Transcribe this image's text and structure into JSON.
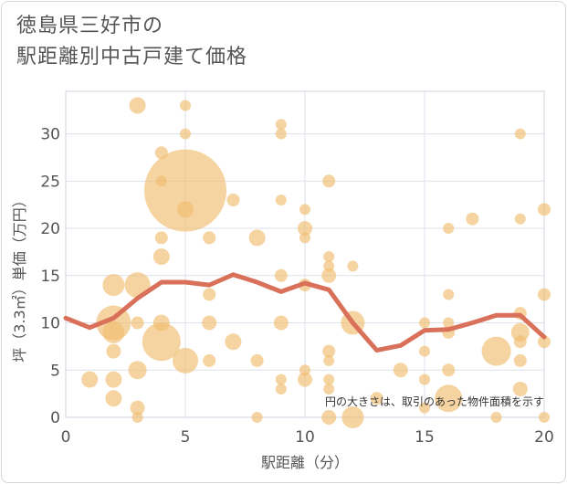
{
  "title_line1": "徳島県三好市の",
  "title_line2": "駅距離別中古戸建て価格",
  "chart_data": {
    "type": "scatter",
    "title": "徳島県三好市の駅距離別中古戸建て価格",
    "xlabel": "駅距離（分）",
    "ylabel": "坪（3.3㎡）単価（万円）",
    "xlim": [
      0,
      20
    ],
    "ylim": [
      0,
      34.5
    ],
    "xticks": [
      0,
      5,
      10,
      15,
      20
    ],
    "yticks": [
      0,
      5,
      10,
      15,
      20,
      25,
      30
    ],
    "grid": true,
    "note": "円の大きさは、取引のあった物件面積を示す",
    "series": [
      {
        "kind": "bubble",
        "color": "#f0bd6e",
        "points": [
          {
            "x": 1,
            "y": 4,
            "s": 9
          },
          {
            "x": 2,
            "y": 14,
            "s": 12
          },
          {
            "x": 2,
            "y": 10,
            "s": 19
          },
          {
            "x": 2,
            "y": 9,
            "s": 12
          },
          {
            "x": 2,
            "y": 7,
            "s": 8
          },
          {
            "x": 2,
            "y": 4,
            "s": 9
          },
          {
            "x": 2,
            "y": 2,
            "s": 9
          },
          {
            "x": 3,
            "y": 33,
            "s": 9
          },
          {
            "x": 3,
            "y": 14,
            "s": 14
          },
          {
            "x": 3,
            "y": 10,
            "s": 7
          },
          {
            "x": 3,
            "y": 5,
            "s": 10
          },
          {
            "x": 3,
            "y": 1,
            "s": 8
          },
          {
            "x": 3,
            "y": 0,
            "s": 6
          },
          {
            "x": 4,
            "y": 28,
            "s": 7
          },
          {
            "x": 4,
            "y": 25,
            "s": 6
          },
          {
            "x": 4,
            "y": 19,
            "s": 7
          },
          {
            "x": 4,
            "y": 17,
            "s": 9
          },
          {
            "x": 4,
            "y": 10,
            "s": 9
          },
          {
            "x": 4,
            "y": 8,
            "s": 21
          },
          {
            "x": 5,
            "y": 33,
            "s": 6
          },
          {
            "x": 5,
            "y": 30,
            "s": 6
          },
          {
            "x": 5,
            "y": 24,
            "s": 45
          },
          {
            "x": 5,
            "y": 22,
            "s": 9
          },
          {
            "x": 5,
            "y": 6,
            "s": 14
          },
          {
            "x": 6,
            "y": 19,
            "s": 7
          },
          {
            "x": 6,
            "y": 13,
            "s": 7
          },
          {
            "x": 6,
            "y": 10,
            "s": 8
          },
          {
            "x": 6,
            "y": 6,
            "s": 7
          },
          {
            "x": 7,
            "y": 23,
            "s": 7
          },
          {
            "x": 7,
            "y": 8,
            "s": 9
          },
          {
            "x": 8,
            "y": 19,
            "s": 9
          },
          {
            "x": 8,
            "y": 6,
            "s": 7
          },
          {
            "x": 8,
            "y": 0,
            "s": 6
          },
          {
            "x": 9,
            "y": 31,
            "s": 6
          },
          {
            "x": 9,
            "y": 30,
            "s": 6
          },
          {
            "x": 9,
            "y": 23,
            "s": 6
          },
          {
            "x": 9,
            "y": 15,
            "s": 7
          },
          {
            "x": 9,
            "y": 10,
            "s": 8
          },
          {
            "x": 9,
            "y": 4,
            "s": 6
          },
          {
            "x": 9,
            "y": 3,
            "s": 6
          },
          {
            "x": 10,
            "y": 22,
            "s": 6
          },
          {
            "x": 10,
            "y": 20,
            "s": 8
          },
          {
            "x": 10,
            "y": 19,
            "s": 6
          },
          {
            "x": 10,
            "y": 14,
            "s": 7
          },
          {
            "x": 10,
            "y": 5,
            "s": 6
          },
          {
            "x": 10,
            "y": 4,
            "s": 8
          },
          {
            "x": 11,
            "y": 25,
            "s": 7
          },
          {
            "x": 11,
            "y": 17,
            "s": 6
          },
          {
            "x": 11,
            "y": 16,
            "s": 6
          },
          {
            "x": 11,
            "y": 15,
            "s": 8
          },
          {
            "x": 11,
            "y": 7,
            "s": 7
          },
          {
            "x": 11,
            "y": 6,
            "s": 6
          },
          {
            "x": 11,
            "y": 4,
            "s": 6
          },
          {
            "x": 11,
            "y": 3,
            "s": 6
          },
          {
            "x": 11,
            "y": 0,
            "s": 8
          },
          {
            "x": 12,
            "y": 16,
            "s": 6
          },
          {
            "x": 12,
            "y": 10,
            "s": 13
          },
          {
            "x": 12,
            "y": 0,
            "s": 12
          },
          {
            "x": 13,
            "y": 2,
            "s": 7
          },
          {
            "x": 14,
            "y": 5,
            "s": 8
          },
          {
            "x": 15,
            "y": 10,
            "s": 6
          },
          {
            "x": 15,
            "y": 7,
            "s": 6
          },
          {
            "x": 15,
            "y": 4,
            "s": 6
          },
          {
            "x": 15,
            "y": 1,
            "s": 6
          },
          {
            "x": 16,
            "y": 20,
            "s": 6
          },
          {
            "x": 16,
            "y": 13,
            "s": 6
          },
          {
            "x": 16,
            "y": 10,
            "s": 6
          },
          {
            "x": 16,
            "y": 9,
            "s": 7
          },
          {
            "x": 16,
            "y": 5,
            "s": 7
          },
          {
            "x": 16,
            "y": 2,
            "s": 15
          },
          {
            "x": 17,
            "y": 21,
            "s": 7
          },
          {
            "x": 18,
            "y": 7,
            "s": 16
          },
          {
            "x": 18,
            "y": 0,
            "s": 6
          },
          {
            "x": 19,
            "y": 30,
            "s": 6
          },
          {
            "x": 19,
            "y": 21,
            "s": 6
          },
          {
            "x": 19,
            "y": 11,
            "s": 7
          },
          {
            "x": 19,
            "y": 9,
            "s": 10
          },
          {
            "x": 19,
            "y": 8,
            "s": 7
          },
          {
            "x": 19,
            "y": 6,
            "s": 7
          },
          {
            "x": 19,
            "y": 3,
            "s": 8
          },
          {
            "x": 20,
            "y": 22,
            "s": 7
          },
          {
            "x": 20,
            "y": 13,
            "s": 7
          },
          {
            "x": 20,
            "y": 8,
            "s": 7
          },
          {
            "x": 20,
            "y": 0,
            "s": 6
          }
        ]
      },
      {
        "kind": "line",
        "color": "#d9705a",
        "x": [
          0,
          1,
          2,
          3,
          4,
          5,
          6,
          7,
          8,
          9,
          10,
          11,
          12,
          13,
          14,
          15,
          16,
          17,
          18,
          19,
          20
        ],
        "y": [
          10.5,
          9.5,
          10.5,
          12.6,
          14.3,
          14.3,
          14.0,
          15.1,
          14.3,
          13.3,
          14.2,
          13.5,
          10.0,
          7.1,
          7.6,
          9.2,
          9.3,
          10.0,
          10.8,
          10.8,
          8.5
        ]
      }
    ]
  }
}
